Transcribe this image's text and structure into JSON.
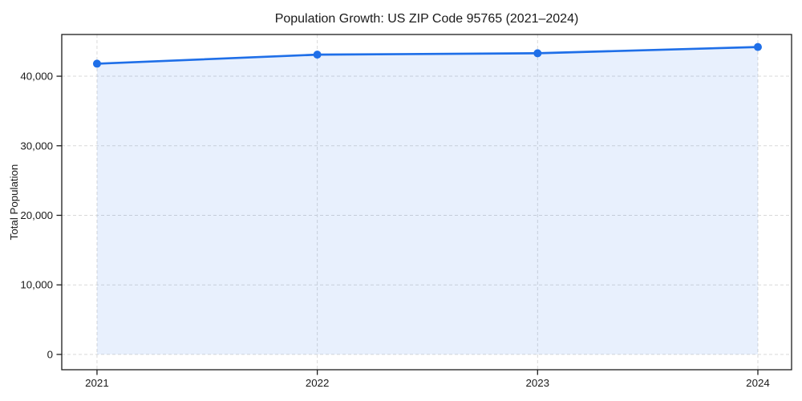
{
  "chart_data": {
    "type": "line",
    "title": "Population Growth: US ZIP Code 95765 (2021–2024)",
    "xlabel": "",
    "ylabel": "Total Population",
    "x": [
      2021,
      2022,
      2023,
      2024
    ],
    "series": [
      {
        "name": "Total Population",
        "values": [
          41800,
          43100,
          43300,
          44200
        ]
      }
    ],
    "xtick_labels": [
      "2021",
      "2022",
      "2023",
      "2024"
    ],
    "yticks": [
      0,
      10000,
      20000,
      30000,
      40000
    ],
    "ytick_labels": [
      "0",
      "10,000",
      "20,000",
      "30,000",
      "40,000"
    ],
    "xlim": [
      2020.84,
      2024.153
    ],
    "ylim": [
      -2200,
      46000
    ],
    "grid": true,
    "grid_style": "dashed",
    "legend": false,
    "area_fill": true,
    "fill_baseline": 0,
    "colors": {
      "line": "#1f6fe8",
      "marker": "#1f6fe8",
      "fill": "rgba(31,111,232,0.10)",
      "grid": "#d9d9d9",
      "spine": "#1c1c1c",
      "background": "#ffffff",
      "text": "#1a1a1a"
    },
    "style": {
      "line_width": 2.7,
      "marker_radius": 5,
      "tick_length": 6.5
    }
  }
}
